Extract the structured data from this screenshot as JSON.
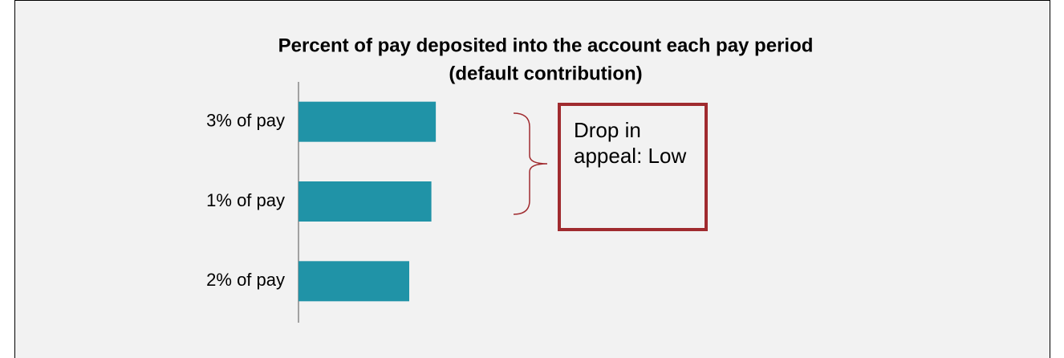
{
  "chart_data": {
    "type": "barh",
    "title": [
      "Percent of pay deposited into the account each pay period",
      "(default contribution)"
    ],
    "categories": [
      "3% of pay",
      "1% of pay",
      "2% of pay"
    ],
    "values": [
      18.6,
      18.0,
      15.0
    ],
    "color": "#2093a7",
    "xlim": [
      0,
      100
    ],
    "annotation": "Drop in appeal: Low"
  }
}
